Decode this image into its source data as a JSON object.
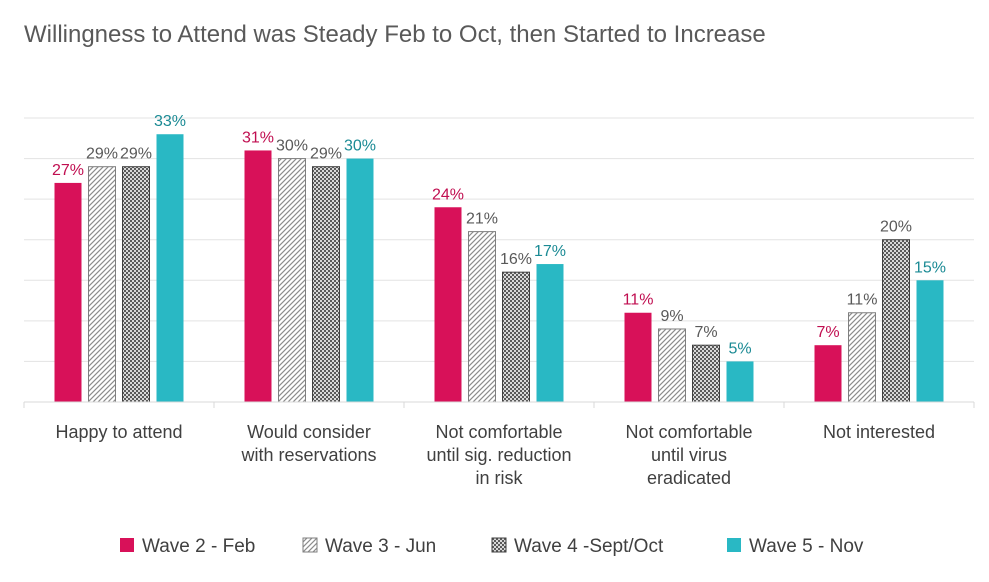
{
  "chart_data": {
    "type": "bar",
    "title": "Willingness to Attend was Steady Feb to Oct, then Started to Increase",
    "xlabel": "",
    "ylabel": "",
    "ylim": [
      0,
      35
    ],
    "grid": true,
    "legend_position": "bottom",
    "categories": [
      [
        "Happy to attend"
      ],
      [
        "Would consider",
        "with reservations"
      ],
      [
        "Not comfortable",
        "until sig. reduction",
        "in risk"
      ],
      [
        "Not comfortable",
        "until virus",
        "eradicated"
      ],
      [
        "Not interested"
      ]
    ],
    "series": [
      {
        "name": "Wave 2 - Feb",
        "values": [
          27,
          31,
          24,
          11,
          7
        ],
        "labels": [
          "27%",
          "31%",
          "24%",
          "11%",
          "7%"
        ],
        "fill": "#d81159",
        "pattern": "solid",
        "label_color": "#c00e50"
      },
      {
        "name": "Wave 3 - Jun",
        "values": [
          29,
          30,
          21,
          9,
          11
        ],
        "labels": [
          "29%",
          "30%",
          "21%",
          "9%",
          "11%"
        ],
        "fill": "#ffffff",
        "pattern": "diagonal",
        "label_color": "#595959"
      },
      {
        "name": "Wave 4 -Sept/Oct",
        "values": [
          29,
          29,
          16,
          7,
          20
        ],
        "labels": [
          "29%",
          "29%",
          "16%",
          "7%",
          "20%"
        ],
        "fill": "#595959",
        "pattern": "crosshatch",
        "label_color": "#595959"
      },
      {
        "name": "Wave 5 - Nov",
        "values": [
          33,
          30,
          17,
          5,
          15
        ],
        "labels": [
          "33%",
          "30%",
          "17%",
          "5%",
          "15%"
        ],
        "fill": "#29b8c4",
        "pattern": "solid",
        "label_color": "#1a8a94"
      }
    ]
  }
}
